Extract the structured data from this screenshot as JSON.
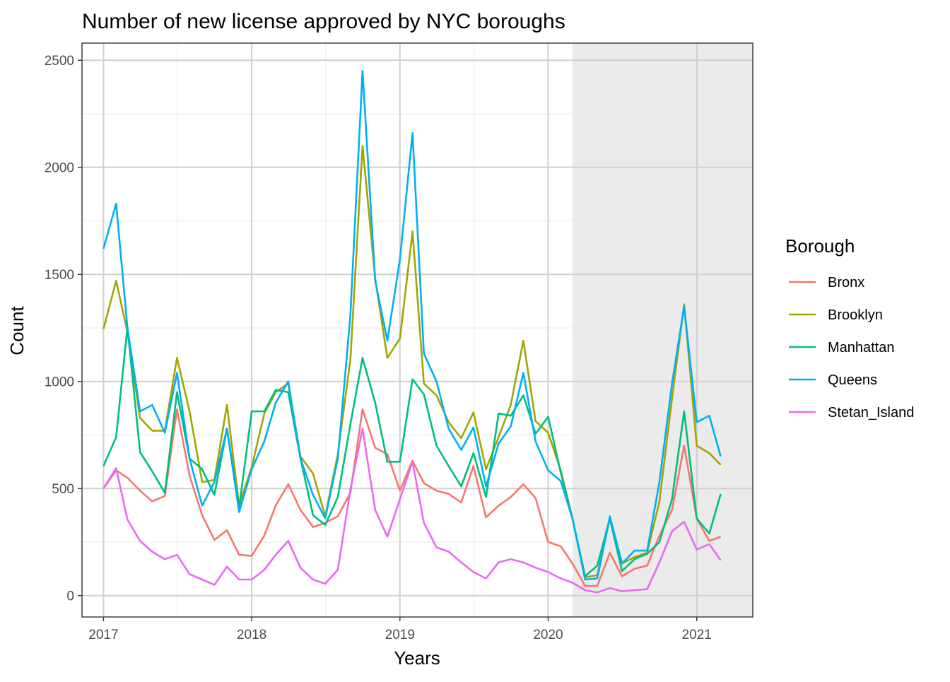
{
  "chart_data": {
    "type": "line",
    "title": "Number of new license approved by NYC boroughs",
    "xlabel": "Years",
    "ylabel": "Count",
    "xlim": [
      "2016-11-09",
      "2021-05-19"
    ],
    "ylim": [
      -100,
      2580
    ],
    "x_ticks": [
      {
        "value": "2017-01-01",
        "label": "2017"
      },
      {
        "value": "2018-01-01",
        "label": "2018"
      },
      {
        "value": "2019-01-01",
        "label": "2019"
      },
      {
        "value": "2020-01-01",
        "label": "2020"
      },
      {
        "value": "2021-01-01",
        "label": "2021"
      }
    ],
    "y_ticks": [
      {
        "value": 0,
        "label": "0"
      },
      {
        "value": 500,
        "label": "500"
      },
      {
        "value": 1000,
        "label": "1000"
      },
      {
        "value": 1500,
        "label": "1500"
      },
      {
        "value": 2000,
        "label": "2000"
      },
      {
        "value": 2500,
        "label": "2500"
      }
    ],
    "shaded_region": {
      "from": "2020-03-01",
      "to": "2021-05-19",
      "color": "#ebebeb"
    },
    "grid": true,
    "legend": {
      "title": "Borough",
      "position": "right"
    },
    "x": [
      "2017-01",
      "2017-02",
      "2017-03",
      "2017-04",
      "2017-05",
      "2017-06",
      "2017-07",
      "2017-08",
      "2017-09",
      "2017-10",
      "2017-11",
      "2017-12",
      "2018-01",
      "2018-02",
      "2018-03",
      "2018-04",
      "2018-05",
      "2018-06",
      "2018-07",
      "2018-08",
      "2018-09",
      "2018-10",
      "2018-11",
      "2018-12",
      "2019-01",
      "2019-02",
      "2019-03",
      "2019-04",
      "2019-05",
      "2019-06",
      "2019-07",
      "2019-08",
      "2019-09",
      "2019-10",
      "2019-11",
      "2019-12",
      "2020-01",
      "2020-02",
      "2020-03",
      "2020-04",
      "2020-05",
      "2020-06",
      "2020-07",
      "2020-08",
      "2020-09",
      "2020-10",
      "2020-11",
      "2020-12",
      "2021-01",
      "2021-02",
      "2021-03"
    ],
    "series": [
      {
        "name": "Bronx",
        "color": "#F8766D",
        "values": [
          500,
          585,
          550,
          490,
          440,
          465,
          870,
          560,
          375,
          260,
          305,
          190,
          185,
          280,
          420,
          520,
          400,
          320,
          340,
          370,
          480,
          870,
          690,
          660,
          490,
          630,
          525,
          490,
          475,
          435,
          605,
          365,
          420,
          460,
          520,
          455,
          250,
          230,
          150,
          45,
          45,
          200,
          90,
          125,
          140,
          280,
          400,
          700,
          360,
          255,
          275
        ]
      },
      {
        "name": "Brooklyn",
        "color": "#A3A500",
        "values": [
          1245,
          1470,
          1230,
          830,
          770,
          770,
          1110,
          860,
          530,
          540,
          890,
          420,
          600,
          850,
          950,
          990,
          650,
          570,
          370,
          660,
          1100,
          2100,
          1480,
          1110,
          1200,
          1700,
          990,
          935,
          810,
          735,
          855,
          590,
          740,
          890,
          1190,
          815,
          760,
          585,
          360,
          85,
          95,
          360,
          150,
          180,
          200,
          440,
          920,
          1360,
          700,
          665,
          610
        ]
      },
      {
        "name": "Manhattan",
        "color": "#00BF7D",
        "values": [
          605,
          740,
          1255,
          670,
          580,
          480,
          950,
          640,
          590,
          470,
          780,
          410,
          860,
          860,
          960,
          950,
          640,
          375,
          330,
          460,
          800,
          1110,
          900,
          625,
          625,
          1010,
          940,
          700,
          605,
          510,
          665,
          460,
          850,
          840,
          935,
          755,
          835,
          575,
          360,
          90,
          140,
          360,
          115,
          170,
          195,
          250,
          450,
          860,
          360,
          290,
          475
        ]
      },
      {
        "name": "Queens",
        "color": "#00B0F6",
        "values": [
          1620,
          1830,
          1250,
          860,
          890,
          760,
          1040,
          640,
          420,
          530,
          780,
          390,
          590,
          720,
          900,
          1000,
          640,
          470,
          360,
          640,
          1310,
          2450,
          1470,
          1190,
          1570,
          2160,
          1130,
          1000,
          780,
          680,
          785,
          510,
          710,
          790,
          1040,
          720,
          585,
          535,
          360,
          75,
          80,
          370,
          150,
          210,
          210,
          530,
          990,
          1350,
          810,
          840,
          650
        ]
      },
      {
        "name": "Stetan_Island",
        "color": "#E76BF3",
        "values": [
          500,
          595,
          355,
          255,
          205,
          170,
          190,
          100,
          75,
          50,
          135,
          75,
          75,
          120,
          190,
          255,
          130,
          75,
          55,
          120,
          495,
          780,
          400,
          275,
          450,
          625,
          340,
          225,
          205,
          155,
          110,
          80,
          155,
          170,
          155,
          130,
          110,
          80,
          60,
          25,
          15,
          35,
          20,
          25,
          30,
          155,
          300,
          345,
          215,
          240,
          165
        ]
      }
    ]
  }
}
